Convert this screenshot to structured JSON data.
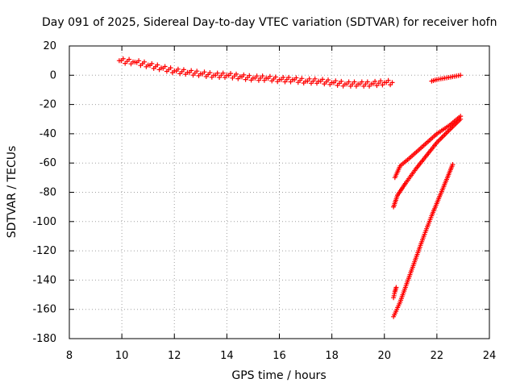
{
  "chart_data": {
    "type": "scatter",
    "title": "Day 091 of 2025, Sidereal Day-to-day VTEC variation (SDTVAR) for receiver hofn",
    "xlabel": "GPS time / hours",
    "ylabel": "SDTVAR / TECUs",
    "xlim": [
      8,
      24
    ],
    "ylim": [
      -180,
      20
    ],
    "xticks": [
      8,
      10,
      12,
      14,
      16,
      18,
      20,
      22,
      24
    ],
    "yticks": [
      20,
      0,
      -20,
      -40,
      -60,
      -80,
      -100,
      -120,
      -140,
      -160,
      -180
    ],
    "grid": true,
    "marker": "+",
    "color": "#ff0000",
    "series": [
      {
        "name": "main-band",
        "x": [
          9.9,
          10.5,
          11.0,
          11.5,
          12.0,
          12.5,
          13.0,
          13.5,
          14.0,
          14.5,
          15.0,
          15.5,
          16.0,
          16.5,
          17.0,
          17.5,
          18.0,
          18.5,
          19.0,
          19.5,
          20.0,
          20.3
        ],
        "y": [
          10,
          9,
          7,
          5,
          3,
          2,
          1,
          0,
          0,
          -1,
          -2,
          -2,
          -3,
          -3,
          -4,
          -4,
          -5,
          -6,
          -6,
          -6,
          -5,
          -5
        ]
      },
      {
        "name": "late-segment",
        "x": [
          21.8,
          22.0,
          22.3,
          22.6,
          22.9
        ],
        "y": [
          -4,
          -3,
          -2,
          -1,
          0
        ]
      },
      {
        "name": "upper-track",
        "x": [
          20.4,
          20.6,
          21.0,
          21.5,
          22.0,
          22.5,
          22.9
        ],
        "y": [
          -70,
          -62,
          -56,
          -48,
          -40,
          -34,
          -28
        ]
      },
      {
        "name": "middle-track",
        "x": [
          20.35,
          20.5,
          20.8,
          21.2,
          21.6,
          22.0,
          22.5,
          22.9
        ],
        "y": [
          -90,
          -82,
          -74,
          -64,
          -55,
          -46,
          -37,
          -30
        ]
      },
      {
        "name": "lower-track",
        "x": [
          20.35,
          20.6,
          20.9,
          21.2,
          21.5,
          21.8,
          22.1,
          22.4,
          22.6
        ],
        "y": [
          -165,
          -155,
          -140,
          -125,
          -110,
          -96,
          -83,
          -70,
          -61
        ]
      },
      {
        "name": "lower-cluster",
        "x": [
          20.35,
          20.4,
          20.45
        ],
        "y": [
          -152,
          -148,
          -145
        ]
      }
    ]
  }
}
